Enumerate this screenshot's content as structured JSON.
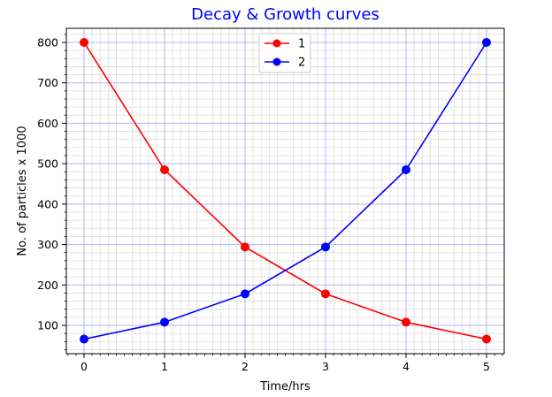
{
  "chart_data": {
    "type": "line",
    "title": "Decay & Growth curves",
    "xlabel": "Time/hrs",
    "ylabel": "No. of particles x 1000",
    "x": [
      0,
      1,
      2,
      3,
      4,
      5
    ],
    "xlim": [
      -0.22,
      5.22
    ],
    "ylim": [
      30,
      835
    ],
    "xticks": [
      0,
      1,
      2,
      3,
      4,
      5
    ],
    "yticks": [
      100,
      200,
      300,
      400,
      500,
      600,
      700,
      800
    ],
    "grid": true,
    "legend_position": "top-center",
    "series": [
      {
        "name": "1",
        "color": "#ff0000",
        "marker": "circle",
        "values": [
          800,
          485,
          294,
          178,
          108,
          66
        ]
      },
      {
        "name": "2",
        "color": "#0000ff",
        "marker": "circle",
        "values": [
          66,
          108,
          178,
          294,
          485,
          800
        ]
      }
    ],
    "colors": {
      "title": "#0000ff",
      "major_grid": "#b3b3f5",
      "minor_grid": "#dcdcdc"
    }
  }
}
